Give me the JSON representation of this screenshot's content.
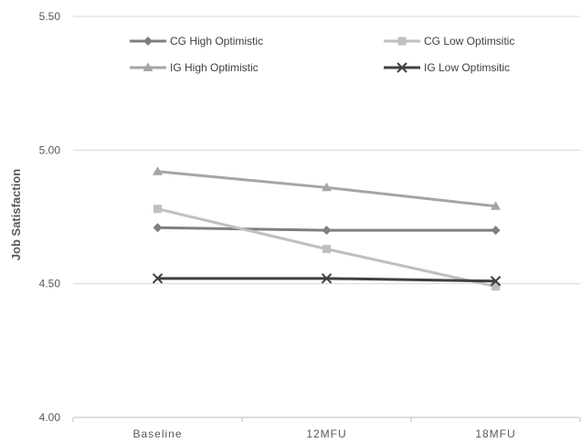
{
  "chart_data": {
    "type": "line",
    "title": "",
    "xlabel": "",
    "ylabel": "Job Satisfaction",
    "categories": [
      "Baseline",
      "12MFU",
      "18MFU"
    ],
    "ylim": [
      4.0,
      5.5
    ],
    "yticks": [
      "4.00",
      "4.50",
      "5.00",
      "5.50"
    ],
    "grid": "horizontal",
    "legend_position": "top",
    "series": [
      {
        "name": "CG High Optimistic",
        "values": [
          4.71,
          4.7,
          4.7
        ],
        "color": "#7f7f7f",
        "marker": "diamond"
      },
      {
        "name": "CG Low Optimsitic",
        "values": [
          4.78,
          4.63,
          4.49
        ],
        "color": "#bfbfbf",
        "marker": "square"
      },
      {
        "name": "IG High Optimistic",
        "values": [
          4.92,
          4.86,
          4.79
        ],
        "color": "#a5a5a5",
        "marker": "triangle"
      },
      {
        "name": "IG Low Optimsitic",
        "values": [
          4.52,
          4.52,
          4.51
        ],
        "color": "#404040",
        "marker": "x"
      }
    ]
  }
}
